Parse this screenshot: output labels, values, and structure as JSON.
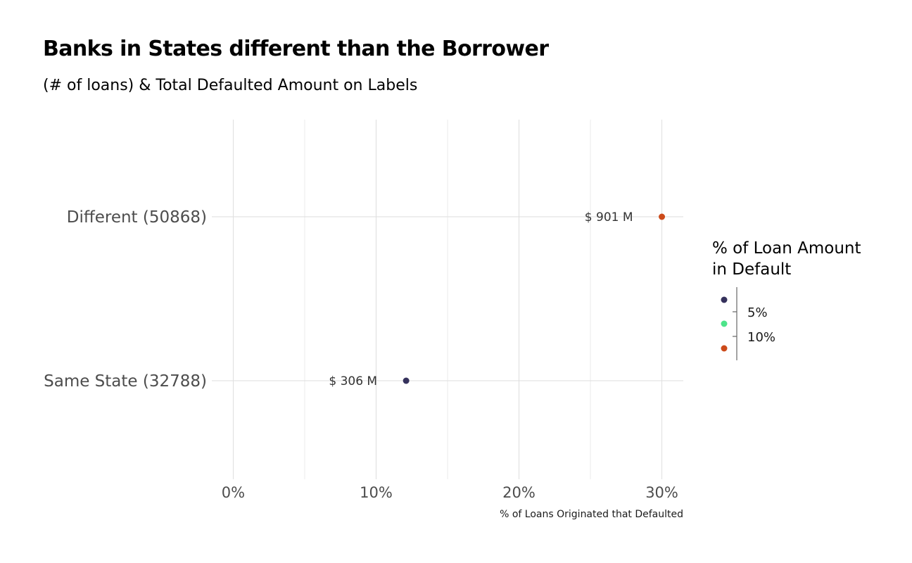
{
  "chart_data": {
    "type": "scatter",
    "title": "Banks in States different than the Borrower",
    "subtitle": "(# of loans) & Total Defaulted Amount on Labels",
    "xlabel": "% of Loans Originated that Defaulted",
    "ylabel": "",
    "xlim": [
      -1.5,
      31.5
    ],
    "x_ticks": [
      0,
      10,
      20,
      30
    ],
    "x_tick_labels": [
      "0%",
      "10%",
      "20%",
      "30%"
    ],
    "grid": true,
    "categories": [
      "Different (50868)",
      "Same State (32788)"
    ],
    "points": [
      {
        "category": "Different (50868)",
        "x": 30.0,
        "label": "$ 901 M",
        "color": "#cc4a1a"
      },
      {
        "category": "Same State (32788)",
        "x": 12.1,
        "label": "$ 306 M",
        "color": "#35315c"
      }
    ],
    "legend": {
      "title_lines": [
        "% of Loan Amount",
        "in Default"
      ],
      "placement": "right",
      "type": "colorbar",
      "tick_labels": [
        "5%",
        "10%"
      ],
      "colors": [
        "#35315c",
        "#4de48a",
        "#cc4a1a"
      ]
    }
  }
}
